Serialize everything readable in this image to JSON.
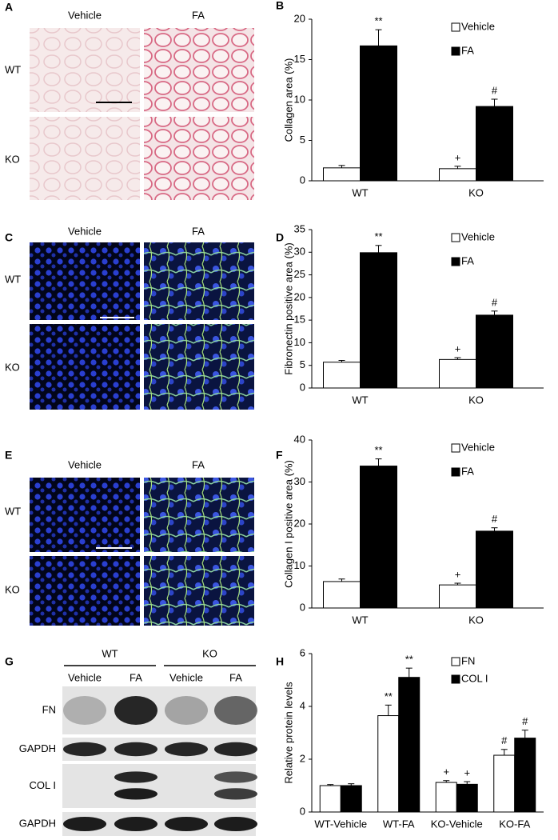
{
  "panels": [
    {
      "letter": "A",
      "columns": [
        "Vehicle",
        "FA"
      ],
      "rows": [
        "WT",
        "KO"
      ]
    },
    {
      "letter": "C",
      "columns": [
        "Vehicle",
        "FA"
      ],
      "rows": [
        "WT",
        "KO"
      ]
    },
    {
      "letter": "E",
      "columns": [
        "Vehicle",
        "FA"
      ],
      "rows": [
        "WT",
        "KO"
      ]
    }
  ],
  "blot": {
    "letter": "G",
    "groups": [
      "WT",
      "KO"
    ],
    "lanes": [
      "Vehicle",
      "FA",
      "Vehicle",
      "FA"
    ],
    "rows": [
      "FN",
      "GAPDH",
      "COL I",
      "GAPDH"
    ]
  },
  "chart_data": [
    {
      "letter": "B",
      "type": "bar",
      "ylabel": "Collagen area (%)",
      "categories": [
        "WT",
        "KO"
      ],
      "series": [
        {
          "name": "Vehicle",
          "color": "#ffffff",
          "values": [
            1.6,
            1.5
          ],
          "errors": [
            0.3,
            0.3
          ],
          "annotations": [
            null,
            "+"
          ]
        },
        {
          "name": "FA",
          "color": "#000000",
          "values": [
            16.7,
            9.2
          ],
          "errors": [
            2.0,
            0.9
          ],
          "annotations": [
            "**",
            "#"
          ]
        }
      ],
      "ylim": [
        0,
        20
      ],
      "yticks": [
        0,
        5,
        10,
        15,
        20
      ],
      "legend": "upper right"
    },
    {
      "letter": "D",
      "type": "bar",
      "ylabel": "Fibronectin positive area (%)",
      "categories": [
        "WT",
        "KO"
      ],
      "series": [
        {
          "name": "Vehicle",
          "color": "#ffffff",
          "values": [
            5.7,
            6.3
          ],
          "errors": [
            0.4,
            0.4
          ],
          "annotations": [
            null,
            "+"
          ]
        },
        {
          "name": "FA",
          "color": "#000000",
          "values": [
            29.9,
            16.1
          ],
          "errors": [
            1.6,
            0.9
          ],
          "annotations": [
            "**",
            "#"
          ]
        }
      ],
      "ylim": [
        0,
        35
      ],
      "yticks": [
        0,
        5,
        10,
        15,
        20,
        25,
        30,
        35
      ],
      "legend": "upper right"
    },
    {
      "letter": "F",
      "type": "bar",
      "ylabel": "Collagen I positive area (%)",
      "categories": [
        "WT",
        "KO"
      ],
      "series": [
        {
          "name": "Vehicle",
          "color": "#ffffff",
          "values": [
            6.3,
            5.5
          ],
          "errors": [
            0.6,
            0.4
          ],
          "annotations": [
            null,
            "+"
          ]
        },
        {
          "name": "FA",
          "color": "#000000",
          "values": [
            33.8,
            18.3
          ],
          "errors": [
            1.7,
            0.8
          ],
          "annotations": [
            "**",
            "#"
          ]
        }
      ],
      "ylim": [
        0,
        40
      ],
      "yticks": [
        0,
        10,
        20,
        30,
        40
      ],
      "legend": "upper right"
    },
    {
      "letter": "H",
      "type": "bar",
      "ylabel": "Relative protein levels",
      "categories": [
        "WT-Vehicle",
        "WT-FA",
        "KO-Vehicle",
        "KO-FA"
      ],
      "series": [
        {
          "name": "FN",
          "color": "#ffffff",
          "values": [
            1.0,
            3.65,
            1.12,
            2.15
          ],
          "errors": [
            0.04,
            0.4,
            0.07,
            0.22
          ],
          "annotations": [
            null,
            "**",
            "+",
            "#"
          ]
        },
        {
          "name": "COL I",
          "color": "#000000",
          "values": [
            1.0,
            5.1,
            1.05,
            2.8
          ],
          "errors": [
            0.07,
            0.35,
            0.1,
            0.3
          ],
          "annotations": [
            null,
            "**",
            "+",
            "#"
          ]
        }
      ],
      "ylim": [
        0,
        6
      ],
      "yticks": [
        0,
        2,
        4,
        6
      ],
      "legend": "upper right"
    }
  ]
}
